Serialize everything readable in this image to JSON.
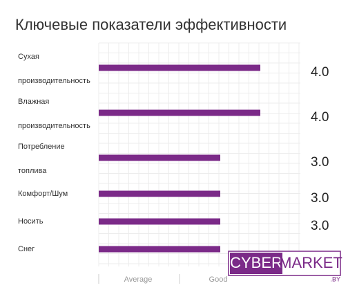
{
  "chart_data": {
    "type": "hbar",
    "title": "Ключевые показатели эффективности",
    "categories": [
      "Сухая производительность",
      "Влажная производительность",
      "Потребление топлива",
      "Комфорт/Шум",
      "Носить",
      "Снег"
    ],
    "values": [
      4,
      4,
      3,
      3,
      3,
      3
    ],
    "value_labels": [
      "4.0",
      "4.0",
      "3.0",
      "3.0",
      "3.0",
      null
    ],
    "color": "#7b2a88",
    "xlim": [
      0,
      5
    ],
    "xticks": [
      {
        "value": 1,
        "label": "Average"
      },
      {
        "value": 3,
        "label": "Good"
      }
    ],
    "grid": true
  },
  "watermark": {
    "left": "CYBER",
    "right": "MARKET",
    "suffix": ".BY"
  }
}
